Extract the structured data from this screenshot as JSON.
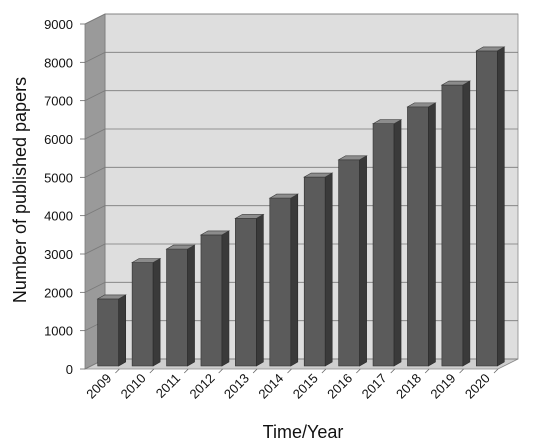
{
  "chart_data": {
    "type": "bar",
    "categories": [
      "2009",
      "2010",
      "2011",
      "2012",
      "2013",
      "2014",
      "2015",
      "2016",
      "2017",
      "2018",
      "2019",
      "2020"
    ],
    "values": [
      1750,
      2700,
      3050,
      3420,
      3850,
      4380,
      4930,
      5380,
      6320,
      6760,
      7330,
      8220
    ],
    "xlabel": "Time/Year",
    "ylabel": "Number of published papers",
    "ylim": [
      0,
      9000
    ],
    "yticks": [
      "0",
      "1000",
      "2000",
      "3000",
      "4000",
      "5000",
      "6000",
      "7000",
      "8000",
      "9000"
    ],
    "grid": true,
    "style": "3d",
    "colors": {
      "bar_front": "#5b5b5b",
      "bar_side": "#3a3a3a",
      "bar_top": "#8c8c8c",
      "back_wall": "#dedede",
      "side_wall": "#9a9a9a",
      "floor": "#cfcfcf"
    }
  }
}
